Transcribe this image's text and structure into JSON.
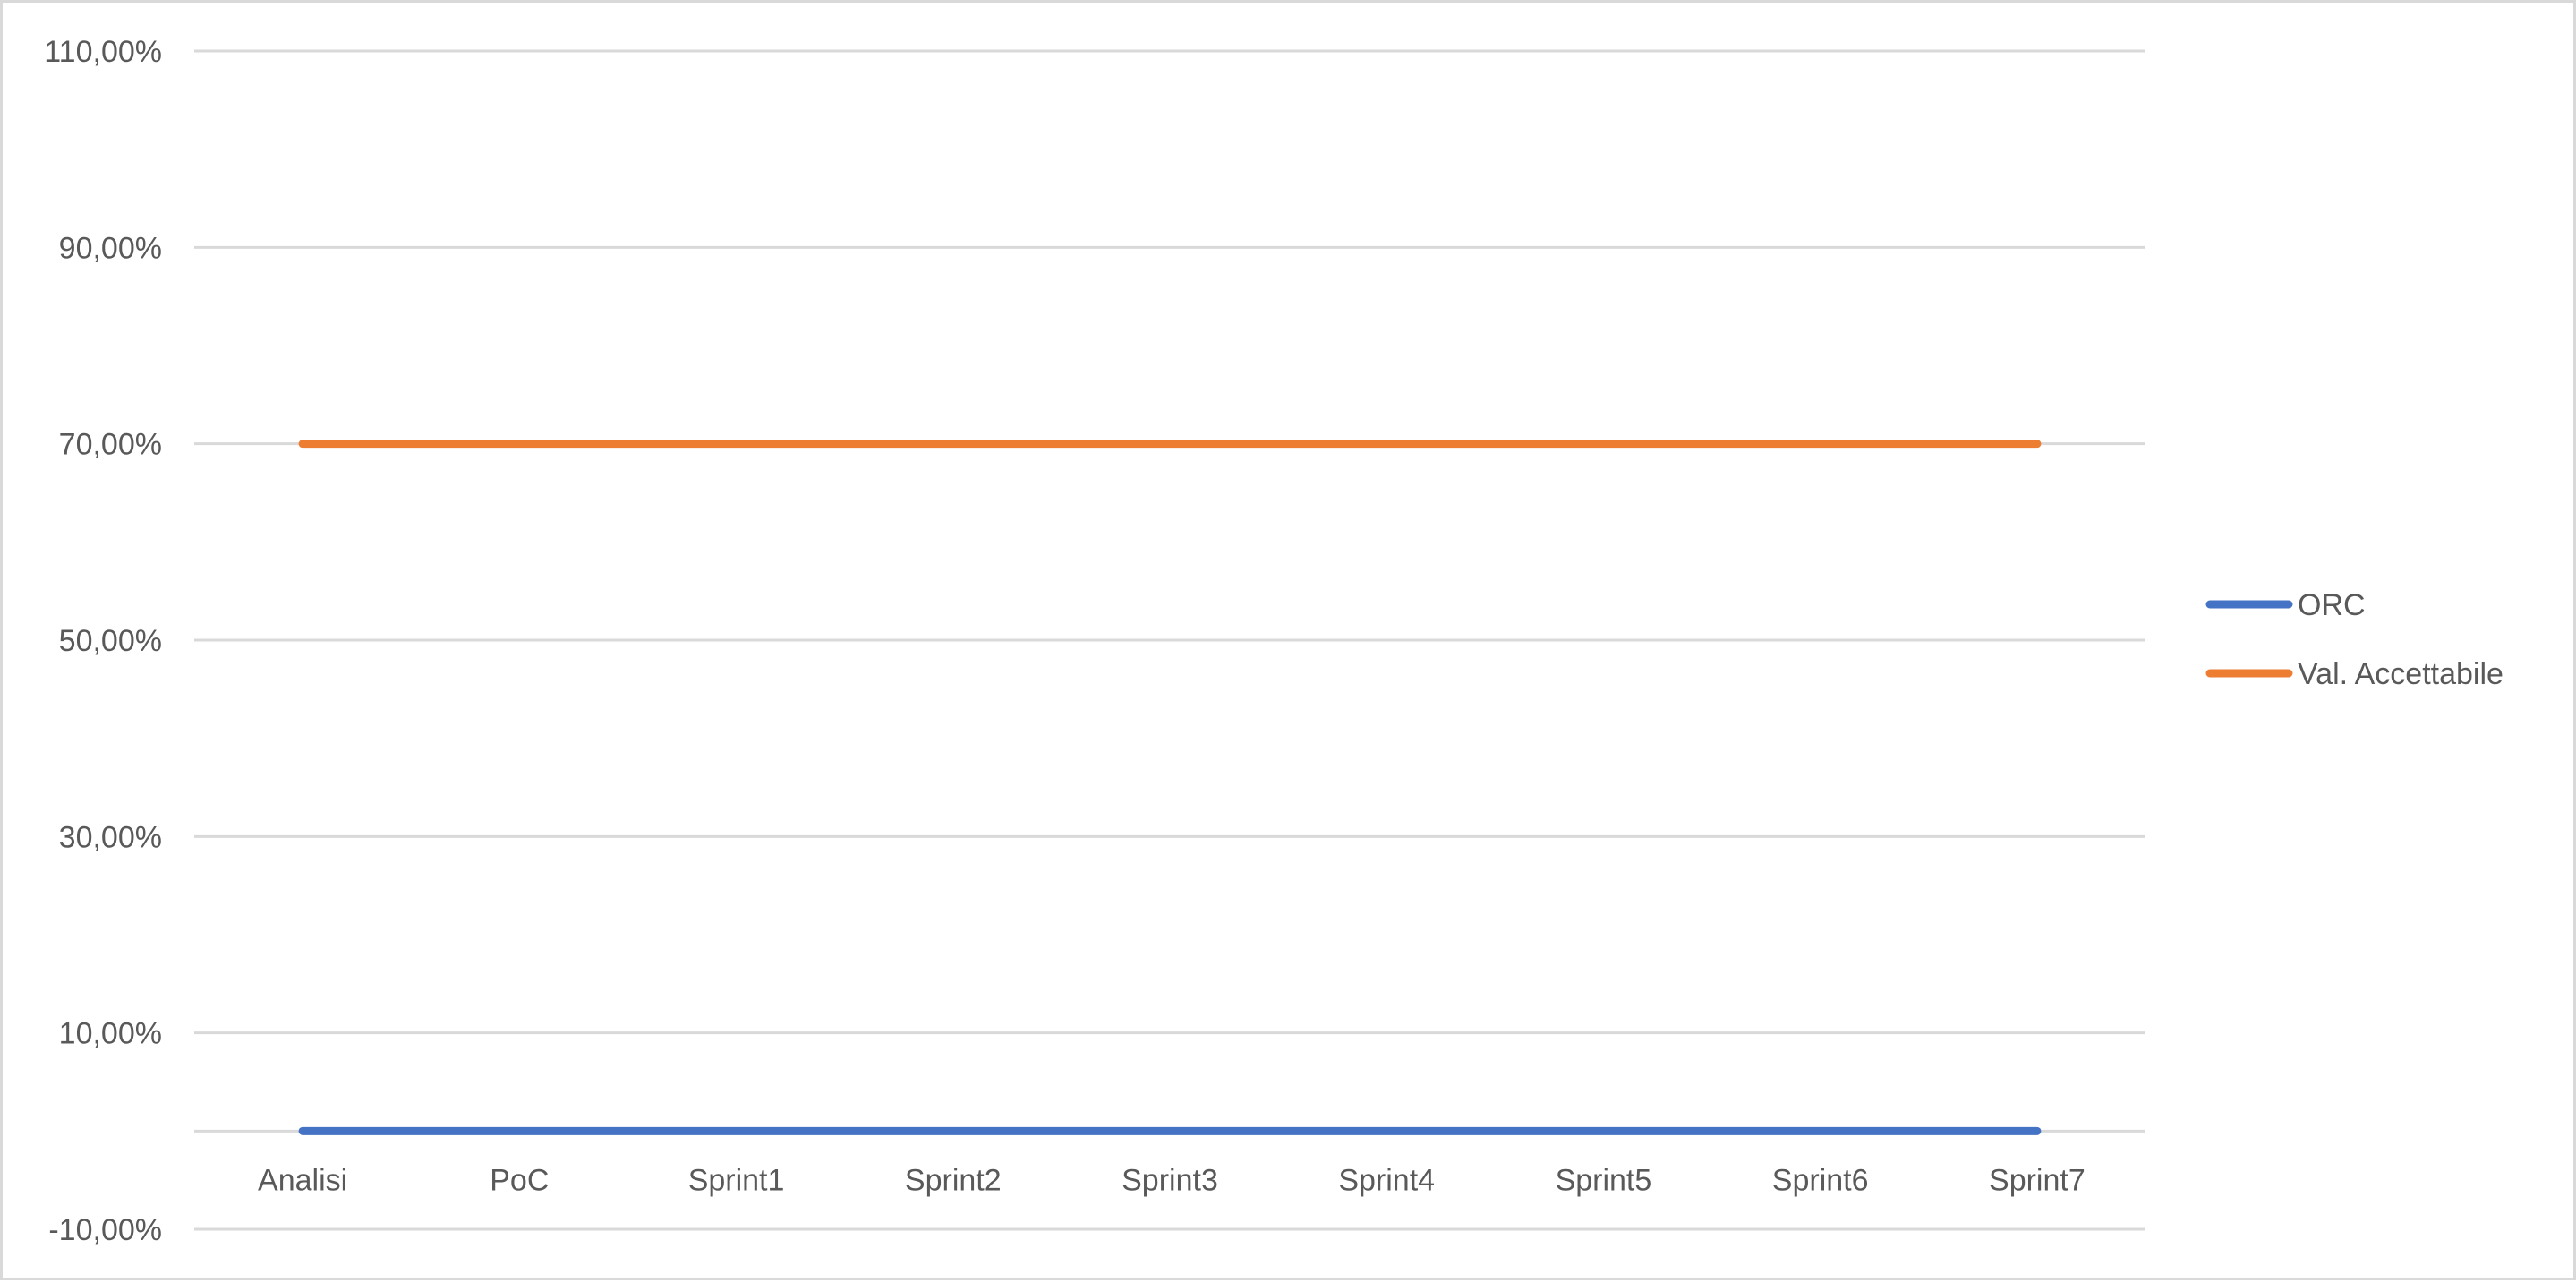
{
  "chart_data": {
    "type": "line",
    "title": "",
    "xlabel": "",
    "ylabel": "",
    "categories": [
      "Analisi",
      "PoC",
      "Sprint1",
      "Sprint2",
      "Sprint3",
      "Sprint4",
      "Sprint5",
      "Sprint6",
      "Sprint7"
    ],
    "ylim": [
      -10,
      110
    ],
    "yticks": [
      -10,
      10,
      30,
      50,
      70,
      90,
      110
    ],
    "ytick_labels": [
      "-10,00%",
      "10,00%",
      "30,00%",
      "50,00%",
      "70,00%",
      "90,00%",
      "110,00%"
    ],
    "grid": true,
    "legend_position": "right",
    "series": [
      {
        "name": "ORC",
        "color": "#4472c4",
        "values": [
          0,
          0,
          0,
          0,
          0,
          0,
          0,
          0,
          0
        ]
      },
      {
        "name": "Val. Accettabile",
        "color": "#ed7d31",
        "values": [
          70,
          70,
          70,
          70,
          70,
          70,
          70,
          70,
          70
        ]
      }
    ]
  }
}
